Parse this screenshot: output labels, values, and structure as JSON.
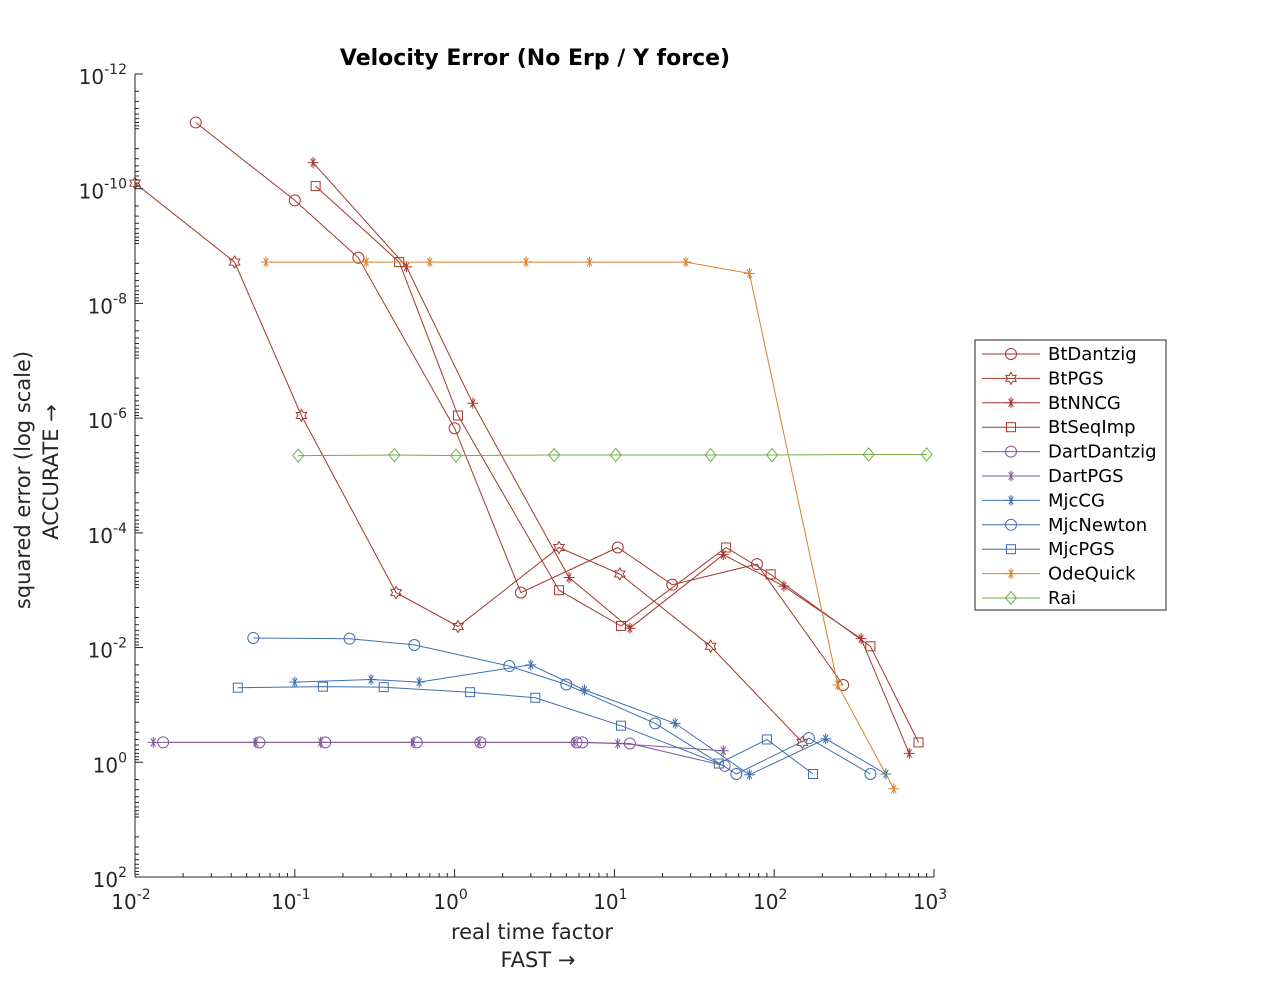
{
  "chart_data": {
    "type": "line",
    "title": "Velocity Error (No Erp / Y force)",
    "xlabel": "real time factor",
    "xlabel2": "FAST →",
    "ylabel": "squared error (log scale)",
    "ylabel2": "ACCURATE →",
    "xscale": "log",
    "yscale": "log",
    "y_reversed": true,
    "xlim": [
      0.01,
      1000
    ],
    "ylim": [
      1e-12,
      100
    ],
    "x_ticks": [
      {
        "base": "10",
        "exp": "-2"
      },
      {
        "base": "10",
        "exp": "-1"
      },
      {
        "base": "10",
        "exp": "0"
      },
      {
        "base": "10",
        "exp": "1"
      },
      {
        "base": "10",
        "exp": "2"
      },
      {
        "base": "10",
        "exp": "3"
      }
    ],
    "y_ticks": [
      {
        "base": "10",
        "exp": "-12"
      },
      {
        "base": "10",
        "exp": "-10"
      },
      {
        "base": "10",
        "exp": "-8"
      },
      {
        "base": "10",
        "exp": "-6"
      },
      {
        "base": "10",
        "exp": "-4"
      },
      {
        "base": "10",
        "exp": "-2"
      },
      {
        "base": "10",
        "exp": "0"
      },
      {
        "base": "10",
        "exp": "2"
      }
    ],
    "grid": false,
    "legend_position": "right",
    "series": [
      {
        "name": "BtDantzig",
        "color": "#a2372d",
        "marker": "circle",
        "x": [
          0.024,
          0.1,
          0.25,
          1.0,
          2.6,
          10.5,
          23,
          78,
          270
        ],
        "y": [
          7e-12,
          1.6e-10,
          1.6e-09,
          1.5e-06,
          0.0011,
          0.00018,
          0.0008,
          0.00035,
          0.045
        ]
      },
      {
        "name": "BtPGS",
        "color": "#a2372d",
        "marker": "hexagram",
        "x": [
          0.01,
          0.042,
          0.11,
          0.43,
          1.05,
          4.5,
          10.8,
          40,
          150
        ],
        "y": [
          8e-11,
          1.9e-09,
          9e-07,
          0.0011,
          0.0043,
          0.00018,
          0.00052,
          0.0095,
          0.45
        ]
      },
      {
        "name": "BtNNCG",
        "color": "#a2372d",
        "marker": "asterisk",
        "x": [
          0.13,
          0.5,
          1.3,
          5.2,
          12.5,
          48,
          115,
          350,
          700
        ],
        "y": [
          3.5e-11,
          2.3e-09,
          5.5e-07,
          0.0006,
          0.0046,
          0.00024,
          0.00085,
          0.007,
          0.7
        ]
      },
      {
        "name": "BtSeqImp",
        "color": "#a2372d",
        "marker": "square",
        "x": [
          0.135,
          0.45,
          1.05,
          4.5,
          11,
          50,
          95,
          400,
          800
        ],
        "y": [
          9e-11,
          1.9e-09,
          9e-07,
          0.001,
          0.0042,
          0.00018,
          0.00053,
          0.0095,
          0.45
        ]
      },
      {
        "name": "DartDantzig",
        "color": "#7e5b9b",
        "marker": "circle",
        "x": [
          0.015,
          0.06,
          0.155,
          0.58,
          1.45,
          5.8,
          6.3,
          12.5,
          49
        ],
        "y": [
          0.45,
          0.45,
          0.45,
          0.45,
          0.45,
          0.45,
          0.45,
          0.47,
          1.15
        ]
      },
      {
        "name": "DartPGS",
        "color": "#7e5b9b",
        "marker": "asterisk",
        "x": [
          0.013,
          0.057,
          0.145,
          0.55,
          1.42,
          5.6,
          10.5,
          48
        ],
        "y": [
          0.45,
          0.45,
          0.45,
          0.45,
          0.45,
          0.45,
          0.47,
          0.63
        ]
      },
      {
        "name": "MjcCG",
        "color": "#3e6fae",
        "marker": "asterisk",
        "x": [
          0.1,
          0.3,
          0.6,
          3.0,
          6.5,
          24,
          70,
          210,
          500
        ],
        "y": [
          0.04,
          0.036,
          0.04,
          0.02,
          0.055,
          0.21,
          1.65,
          0.39,
          1.6
        ]
      },
      {
        "name": "MjcNewton",
        "color": "#3e6fae",
        "marker": "circle",
        "x": [
          0.055,
          0.22,
          0.56,
          2.2,
          5.0,
          18,
          58,
          165,
          400
        ],
        "y": [
          0.0068,
          0.007,
          0.009,
          0.021,
          0.044,
          0.21,
          1.6,
          0.38,
          1.6
        ]
      },
      {
        "name": "MjcPGS",
        "color": "#3e6fae",
        "marker": "square",
        "x": [
          0.044,
          0.15,
          0.36,
          1.25,
          3.2,
          11,
          45,
          90,
          175
        ],
        "y": [
          0.05,
          0.048,
          0.049,
          0.06,
          0.075,
          0.23,
          1.05,
          0.4,
          1.6
        ]
      },
      {
        "name": "OdeQuick",
        "color": "#d9822b",
        "marker": "asterisk",
        "x": [
          0.066,
          0.28,
          0.7,
          2.8,
          7.0,
          28,
          70,
          250,
          560
        ],
        "y": [
          1.9e-09,
          1.9e-09,
          1.9e-09,
          1.9e-09,
          1.9e-09,
          1.9e-09,
          3e-09,
          0.045,
          2.9
        ]
      },
      {
        "name": "Rai",
        "color": "#77ac4b",
        "marker": "diamond",
        "x": [
          0.105,
          0.42,
          1.02,
          4.2,
          10.2,
          40,
          97,
          390,
          900
        ],
        "y": [
          4.5e-06,
          4.4e-06,
          4.5e-06,
          4.4e-06,
          4.4e-06,
          4.4e-06,
          4.4e-06,
          4.3e-06,
          4.3e-06
        ]
      }
    ]
  }
}
